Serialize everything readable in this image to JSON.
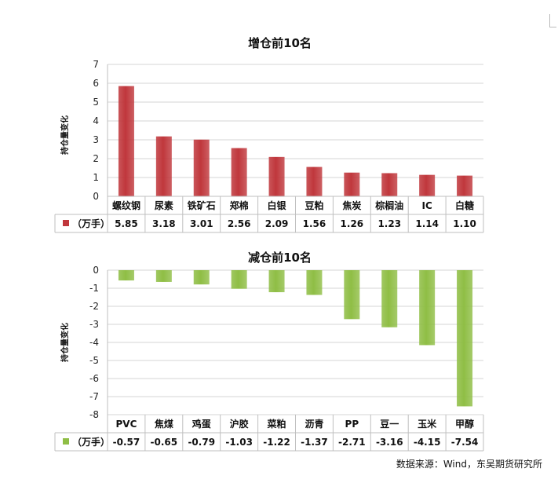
{
  "source_note": "数据来源：Wind，东吴期货研究所",
  "chart_data": [
    {
      "type": "bar",
      "title": "增仓前10名",
      "ylabel": "持仓量变化",
      "legend_label": "（万手）",
      "categories": [
        "螺纹钢",
        "尿素",
        "铁矿石",
        "郑棉",
        "白银",
        "豆粕",
        "焦炭",
        "棕榈油",
        "IC",
        "白糖"
      ],
      "values": [
        5.85,
        3.18,
        3.01,
        2.56,
        2.09,
        1.56,
        1.26,
        1.23,
        1.14,
        1.1
      ],
      "value_labels": [
        "5.85",
        "3.18",
        "3.01",
        "2.56",
        "2.09",
        "1.56",
        "1.26",
        "1.23",
        "1.14",
        "1.10"
      ],
      "ylim": [
        0,
        7
      ],
      "yticks": [
        0,
        1,
        2,
        3,
        4,
        5,
        6,
        7
      ],
      "grid": true,
      "color": "#c0373c",
      "legend_placement": "data table below x-axis"
    },
    {
      "type": "bar",
      "title": "减仓前10名",
      "ylabel": "持仓量变化",
      "legend_label": "（万手）",
      "categories": [
        "PVC",
        "焦煤",
        "鸡蛋",
        "沪胶",
        "菜粕",
        "沥青",
        "PP",
        "豆一",
        "玉米",
        "甲醇"
      ],
      "values": [
        -0.57,
        -0.65,
        -0.79,
        -1.03,
        -1.22,
        -1.37,
        -2.71,
        -3.16,
        -4.15,
        -7.54
      ],
      "value_labels": [
        "-0.57",
        "-0.65",
        "-0.79",
        "-1.03",
        "-1.22",
        "-1.37",
        "-2.71",
        "-3.16",
        "-4.15",
        "-7.54"
      ],
      "ylim": [
        -8,
        0
      ],
      "yticks": [
        0,
        -1,
        -2,
        -3,
        -4,
        -5,
        -6,
        -7,
        -8
      ],
      "grid": true,
      "color": "#8fbe45",
      "legend_placement": "data table below x-axis"
    }
  ]
}
